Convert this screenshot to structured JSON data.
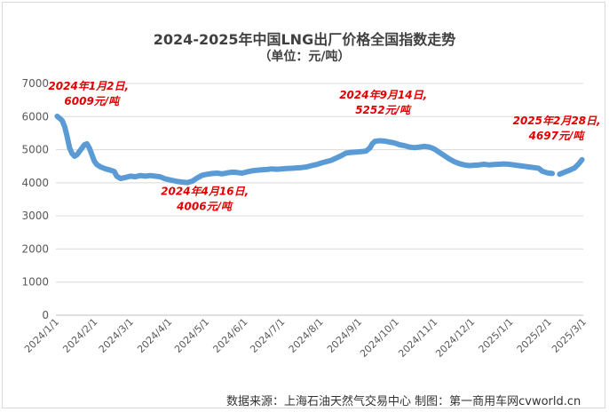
{
  "title": "2024-2025年中国LNG出厂价格全国指数走势",
  "subtitle": "（单位：元/吨）",
  "footer": "数据来源：上海石油天然气交易中心 制图：第一商用车网cvworld.cn",
  "colors": {
    "line": "#5b9bd5",
    "annotation": "#e00000",
    "grid": "#d9d9d9",
    "axis_text": "#595959"
  },
  "chart_data": {
    "type": "line",
    "title": "2024-2025年中国LNG出厂价格全国指数走势",
    "subtitle": "（单位：元/吨）",
    "xlabel": "",
    "ylabel": "",
    "ylim": [
      0,
      7000
    ],
    "yticks": [
      0,
      1000,
      2000,
      3000,
      4000,
      5000,
      6000,
      7000
    ],
    "xlim": [
      "2024-01-01",
      "2025-03-01"
    ],
    "xticks": [
      "2024/1/1",
      "2024/2/1",
      "2024/3/1",
      "2024/4/1",
      "2024/5/1",
      "2024/6/1",
      "2024/7/1",
      "2024/8/1",
      "2024/9/1",
      "2024/10/1",
      "2024/11/1",
      "2024/12/1",
      "2025/1/1",
      "2025/2/1",
      "2025/3/1"
    ],
    "grid": true,
    "legend": "none",
    "series": [
      {
        "points": [
          [
            "2024-01-02",
            6009
          ],
          [
            "2024-01-04",
            5950
          ],
          [
            "2024-01-06",
            5880
          ],
          [
            "2024-01-08",
            5700
          ],
          [
            "2024-01-10",
            5400
          ],
          [
            "2024-01-12",
            5050
          ],
          [
            "2024-01-14",
            4880
          ],
          [
            "2024-01-16",
            4800
          ],
          [
            "2024-01-18",
            4850
          ],
          [
            "2024-01-20",
            4950
          ],
          [
            "2024-01-22",
            5050
          ],
          [
            "2024-01-24",
            5150
          ],
          [
            "2024-01-26",
            5180
          ],
          [
            "2024-01-28",
            5050
          ],
          [
            "2024-01-30",
            4850
          ],
          [
            "2024-02-01",
            4650
          ],
          [
            "2024-02-03",
            4550
          ],
          [
            "2024-02-06",
            4480
          ],
          [
            "2024-02-10",
            4420
          ],
          [
            "2024-02-14",
            4380
          ],
          [
            "2024-02-17",
            4340
          ],
          [
            "2024-02-19",
            4200
          ],
          [
            "2024-02-22",
            4130
          ],
          [
            "2024-02-26",
            4160
          ],
          [
            "2024-03-01",
            4200
          ],
          [
            "2024-03-05",
            4180
          ],
          [
            "2024-03-09",
            4220
          ],
          [
            "2024-03-13",
            4200
          ],
          [
            "2024-03-17",
            4220
          ],
          [
            "2024-03-21",
            4200
          ],
          [
            "2024-03-25",
            4180
          ],
          [
            "2024-03-29",
            4120
          ],
          [
            "2024-04-03",
            4080
          ],
          [
            "2024-04-08",
            4040
          ],
          [
            "2024-04-12",
            4020
          ],
          [
            "2024-04-16",
            4006
          ],
          [
            "2024-04-20",
            4050
          ],
          [
            "2024-04-24",
            4150
          ],
          [
            "2024-04-28",
            4230
          ],
          [
            "2024-05-02",
            4260
          ],
          [
            "2024-05-06",
            4280
          ],
          [
            "2024-05-10",
            4290
          ],
          [
            "2024-05-14",
            4270
          ],
          [
            "2024-05-18",
            4300
          ],
          [
            "2024-05-22",
            4320
          ],
          [
            "2024-05-26",
            4310
          ],
          [
            "2024-05-30",
            4290
          ],
          [
            "2024-06-03",
            4330
          ],
          [
            "2024-06-07",
            4360
          ],
          [
            "2024-06-11",
            4380
          ],
          [
            "2024-06-15",
            4390
          ],
          [
            "2024-06-19",
            4400
          ],
          [
            "2024-06-23",
            4420
          ],
          [
            "2024-06-27",
            4410
          ],
          [
            "2024-07-01",
            4420
          ],
          [
            "2024-07-05",
            4430
          ],
          [
            "2024-07-09",
            4440
          ],
          [
            "2024-07-13",
            4450
          ],
          [
            "2024-07-17",
            4460
          ],
          [
            "2024-07-21",
            4480
          ],
          [
            "2024-07-25",
            4520
          ],
          [
            "2024-07-29",
            4550
          ],
          [
            "2024-08-02",
            4600
          ],
          [
            "2024-08-06",
            4640
          ],
          [
            "2024-08-10",
            4680
          ],
          [
            "2024-08-14",
            4750
          ],
          [
            "2024-08-18",
            4820
          ],
          [
            "2024-08-22",
            4900
          ],
          [
            "2024-08-26",
            4920
          ],
          [
            "2024-08-30",
            4930
          ],
          [
            "2024-09-03",
            4940
          ],
          [
            "2024-09-07",
            4960
          ],
          [
            "2024-09-10",
            5050
          ],
          [
            "2024-09-12",
            5180
          ],
          [
            "2024-09-14",
            5252
          ],
          [
            "2024-09-18",
            5270
          ],
          [
            "2024-09-22",
            5260
          ],
          [
            "2024-09-26",
            5230
          ],
          [
            "2024-09-30",
            5200
          ],
          [
            "2024-10-04",
            5150
          ],
          [
            "2024-10-08",
            5120
          ],
          [
            "2024-10-12",
            5080
          ],
          [
            "2024-10-16",
            5060
          ],
          [
            "2024-10-20",
            5080
          ],
          [
            "2024-10-24",
            5100
          ],
          [
            "2024-10-28",
            5080
          ],
          [
            "2024-11-01",
            5020
          ],
          [
            "2024-11-05",
            4920
          ],
          [
            "2024-11-09",
            4820
          ],
          [
            "2024-11-13",
            4720
          ],
          [
            "2024-11-17",
            4640
          ],
          [
            "2024-11-21",
            4580
          ],
          [
            "2024-11-25",
            4540
          ],
          [
            "2024-11-29",
            4520
          ],
          [
            "2024-12-03",
            4530
          ],
          [
            "2024-12-07",
            4540
          ],
          [
            "2024-12-11",
            4560
          ],
          [
            "2024-12-15",
            4540
          ],
          [
            "2024-12-19",
            4550
          ],
          [
            "2024-12-23",
            4560
          ],
          [
            "2024-12-27",
            4570
          ],
          [
            "2024-12-31",
            4560
          ],
          [
            "2025-01-04",
            4540
          ],
          [
            "2025-01-08",
            4520
          ],
          [
            "2025-01-12",
            4500
          ],
          [
            "2025-01-16",
            4480
          ],
          [
            "2025-01-20",
            4460
          ],
          [
            "2025-01-24",
            4440
          ],
          [
            "2025-01-27",
            4350
          ],
          [
            "2025-01-31",
            4300
          ],
          [
            "2025-02-04",
            4280
          ],
          null,
          [
            "2025-02-10",
            4260
          ],
          [
            "2025-02-14",
            4320
          ],
          [
            "2025-02-18",
            4380
          ],
          [
            "2025-02-22",
            4450
          ],
          [
            "2025-02-25",
            4560
          ],
          [
            "2025-02-28",
            4697
          ]
        ]
      }
    ],
    "annotations": [
      {
        "lines": [
          "2024年1月2日,",
          "6009元/吨"
        ],
        "date": "2024-01-02",
        "value": 6009
      },
      {
        "lines": [
          "2024年4月16日,",
          "4006元/吨"
        ],
        "date": "2024-04-16",
        "value": 4006
      },
      {
        "lines": [
          "2024年9月14日,",
          "5252元/吨"
        ],
        "date": "2024-09-14",
        "value": 5252
      },
      {
        "lines": [
          "2025年2月28日,",
          "4697元/吨"
        ],
        "date": "2025-02-28",
        "value": 4697
      }
    ]
  }
}
